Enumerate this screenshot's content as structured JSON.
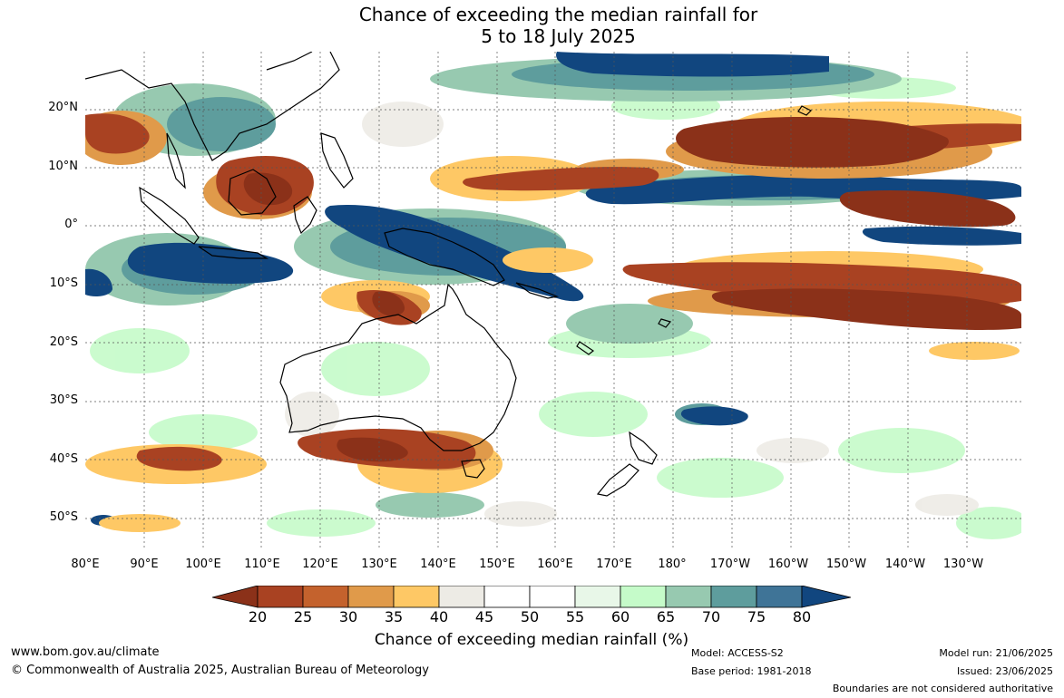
{
  "title": {
    "line1": "Chance of exceeding the median rainfall for",
    "line2": "5 to 18 July 2025"
  },
  "map": {
    "lat_labels": [
      "20°N",
      "10°N",
      "0°",
      "10°S",
      "20°S",
      "30°S",
      "40°S",
      "50°S"
    ],
    "lon_labels": [
      "80°E",
      "90°E",
      "100°E",
      "110°E",
      "120°E",
      "130°E",
      "140°E",
      "150°E",
      "160°E",
      "170°E",
      "180°",
      "170°W",
      "160°W",
      "150°W",
      "140°W",
      "130°W"
    ]
  },
  "colorbar": {
    "ticks": [
      "20",
      "25",
      "30",
      "35",
      "40",
      "45",
      "50",
      "55",
      "60",
      "65",
      "70",
      "75",
      "80"
    ],
    "colors": [
      "#8b3119",
      "#a94222",
      "#c4622d",
      "#e09a4a",
      "#fec865",
      "#edebe5",
      "#ffffff",
      "#ffffff",
      "#e8f7e8",
      "#c5fbc9",
      "#97c9b0",
      "#5e9d9d",
      "#3f7497",
      "#11467f"
    ],
    "label": "Chance of exceeding median rainfall (%)"
  },
  "footer": {
    "website": "www.bom.gov.au/climate",
    "copyright": "© Commonwealth of Australia 2025, Australian Bureau of Meteorology",
    "model": "Model: ACCESS-S2",
    "base_period": "Base period: 1981-2018",
    "model_run": "Model run: 21/06/2025",
    "issued": "Issued: 23/06/2025",
    "disclaimer": "Boundaries are not considered authoritative"
  }
}
